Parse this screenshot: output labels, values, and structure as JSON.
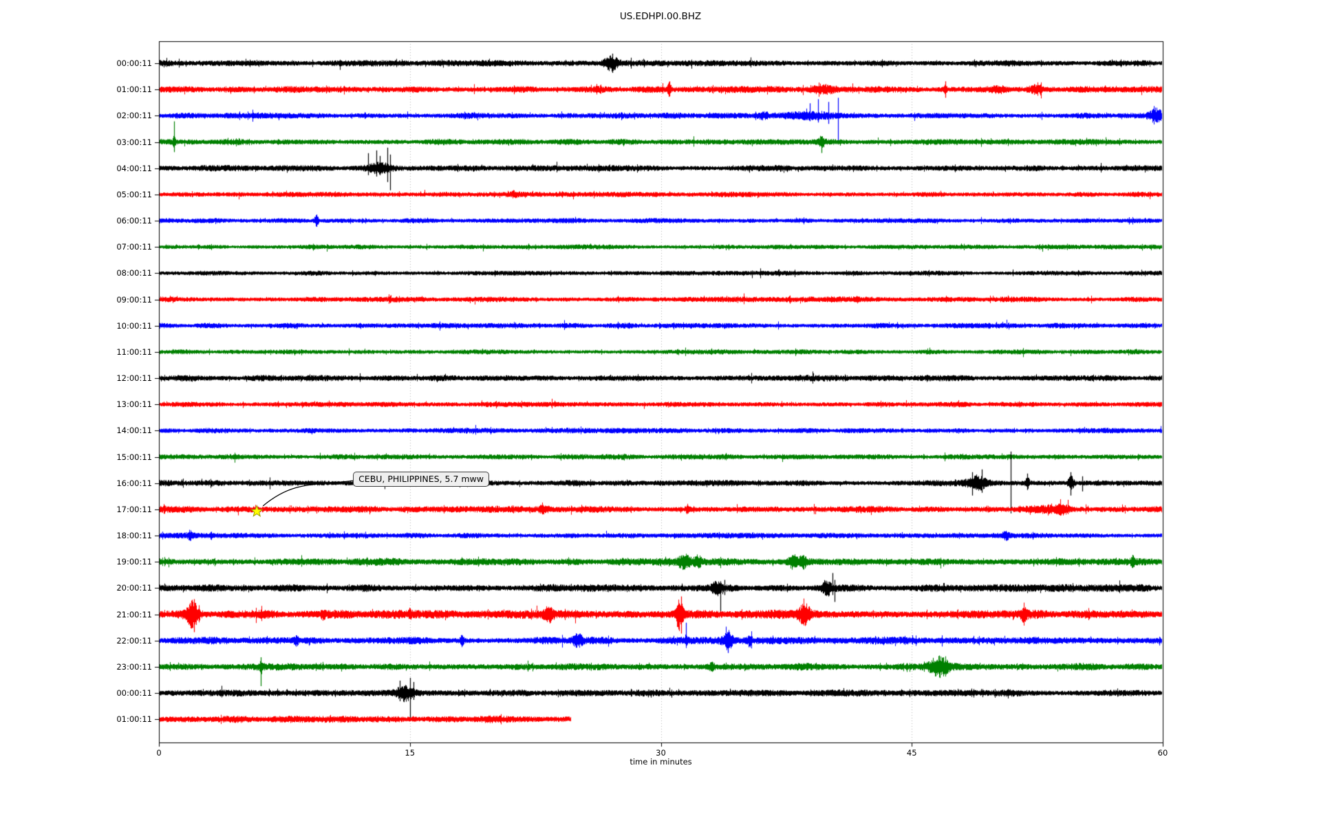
{
  "chart_data": {
    "type": "line",
    "title": "US.EDHPI.00.BHZ",
    "xlabel": "time in minutes",
    "x_range": [
      0,
      60
    ],
    "x_ticks": [
      "0",
      "15",
      "30",
      "45",
      "60"
    ],
    "x_tick_values": [
      0,
      15,
      30,
      45,
      60
    ],
    "grid_x_values": [
      15,
      30,
      45
    ],
    "grid_color": "#b3b3b3",
    "legend": null,
    "trace_palette": {
      "black": "#000000",
      "red": "#ff0000",
      "blue": "#0000ff",
      "green": "#008000"
    },
    "annotation": {
      "text": "CEBU, PHILIPPINES, 5.7 mww",
      "star_row_label": "17:00:11",
      "star_row_index": 17,
      "star_minute": 5.85,
      "star_color": "#ffff00",
      "box_left_minute": 11.6
    },
    "rows": [
      {
        "label": "00:00:11",
        "color": "black",
        "base": 3.8,
        "events": [
          {
            "m": 27.0,
            "s": 0.3,
            "a": 8
          },
          {
            "m": 27.1,
            "up": 14,
            "dn": 14
          }
        ]
      },
      {
        "label": "01:00:11",
        "color": "red",
        "base": 4.2,
        "events": [
          {
            "m": 30.5,
            "s": 0.08,
            "a": 8
          },
          {
            "m": 30.5,
            "up": 12,
            "dn": 10
          },
          {
            "m": 39.6,
            "s": 0.5,
            "a": 4
          },
          {
            "m": 47.0,
            "s": 0.06,
            "a": 6
          },
          {
            "m": 47.0,
            "up": 12,
            "dn": 12
          },
          {
            "m": 50.2,
            "s": 0.35,
            "a": 3.5
          },
          {
            "m": 52.4,
            "s": 0.25,
            "a": 4.5
          }
        ]
      },
      {
        "label": "02:00:11",
        "color": "blue",
        "base": 3.8,
        "events": [
          {
            "m": 36.1,
            "s": 0.2,
            "a": 3
          },
          {
            "m": 38.8,
            "s": 1.2,
            "a": 4
          },
          {
            "m": 38.9,
            "up": 18,
            "dn": 8
          },
          {
            "m": 39.4,
            "up": 24,
            "dn": 10
          },
          {
            "m": 40.0,
            "up": 20,
            "dn": 12
          },
          {
            "m": 40.6,
            "up": 26,
            "dn": 40
          },
          {
            "m": 59.6,
            "s": 0.3,
            "a": 8
          }
        ]
      },
      {
        "label": "03:00:11",
        "color": "green",
        "base": 3.8,
        "events": [
          {
            "m": 0.9,
            "s": 0.05,
            "a": 10
          },
          {
            "m": 0.9,
            "up": 30,
            "dn": 14
          },
          {
            "m": 39.6,
            "s": 0.12,
            "a": 6
          },
          {
            "m": 39.6,
            "up": 8,
            "dn": 16
          }
        ]
      },
      {
        "label": "04:00:11",
        "color": "black",
        "base": 3.8,
        "events": [
          {
            "m": 13.2,
            "s": 0.5,
            "a": 6
          },
          {
            "m": 12.5,
            "up": 22,
            "dn": 10
          },
          {
            "m": 13.0,
            "up": 26,
            "dn": 12
          },
          {
            "m": 13.2,
            "up": 18,
            "dn": 10
          },
          {
            "m": 13.65,
            "up": 30,
            "dn": 20
          },
          {
            "m": 13.8,
            "up": 20,
            "dn": 32
          }
        ]
      },
      {
        "label": "05:00:11",
        "color": "red",
        "base": 3.4,
        "events": [
          {
            "m": 21.2,
            "s": 0.15,
            "a": 2.5
          }
        ]
      },
      {
        "label": "06:00:11",
        "color": "blue",
        "base": 3.2,
        "events": [
          {
            "m": 9.4,
            "s": 0.1,
            "a": 6
          },
          {
            "m": 9.4,
            "up": 9,
            "dn": 9
          }
        ]
      },
      {
        "label": "07:00:11",
        "color": "green",
        "base": 3.0,
        "events": []
      },
      {
        "label": "08:00:11",
        "color": "black",
        "base": 3.0,
        "events": []
      },
      {
        "label": "09:00:11",
        "color": "red",
        "base": 3.4,
        "events": []
      },
      {
        "label": "10:00:11",
        "color": "blue",
        "base": 3.4,
        "events": []
      },
      {
        "label": "11:00:11",
        "color": "green",
        "base": 3.0,
        "events": []
      },
      {
        "label": "12:00:11",
        "color": "black",
        "base": 3.8,
        "events": []
      },
      {
        "label": "13:00:11",
        "color": "red",
        "base": 3.4,
        "events": []
      },
      {
        "label": "14:00:11",
        "color": "blue",
        "base": 3.4,
        "events": []
      },
      {
        "label": "15:00:11",
        "color": "green",
        "base": 3.4,
        "events": []
      },
      {
        "label": "16:00:11",
        "color": "black",
        "base": 3.8,
        "events": [
          {
            "m": 48.9,
            "s": 0.4,
            "a": 9
          },
          {
            "m": 48.6,
            "up": 16,
            "dn": 18
          },
          {
            "m": 49.2,
            "up": 20,
            "dn": 14
          },
          {
            "m": 50.9,
            "up": 46,
            "dn": 44
          },
          {
            "m": 51.9,
            "s": 0.08,
            "a": 8
          },
          {
            "m": 51.9,
            "up": 14,
            "dn": 10
          },
          {
            "m": 54.5,
            "s": 0.12,
            "a": 8
          },
          {
            "m": 54.5,
            "up": 16,
            "dn": 18
          },
          {
            "m": 55.2,
            "up": 10,
            "dn": 12
          }
        ]
      },
      {
        "label": "17:00:11",
        "color": "red",
        "base": 4.2,
        "events": [
          {
            "m": 23.0,
            "s": 0.2,
            "a": 4
          },
          {
            "m": 31.6,
            "s": 0.08,
            "a": 5
          },
          {
            "m": 52.8,
            "s": 0.9,
            "a": 3
          },
          {
            "m": 54.0,
            "s": 0.25,
            "a": 4
          }
        ]
      },
      {
        "label": "18:00:11",
        "color": "blue",
        "base": 3.4,
        "events": [
          {
            "m": 1.85,
            "s": 0.12,
            "a": 4
          },
          {
            "m": 50.6,
            "s": 0.15,
            "a": 4
          }
        ]
      },
      {
        "label": "19:00:11",
        "color": "green",
        "base": 4.6,
        "events": [
          {
            "m": 31.4,
            "s": 0.25,
            "a": 8
          },
          {
            "m": 32.2,
            "s": 0.15,
            "a": 6
          },
          {
            "m": 37.9,
            "s": 0.2,
            "a": 7
          },
          {
            "m": 38.5,
            "s": 0.15,
            "a": 6
          },
          {
            "m": 58.2,
            "s": 0.08,
            "a": 7
          },
          {
            "m": 58.2,
            "up": 10,
            "dn": 6
          }
        ]
      },
      {
        "label": "20:00:11",
        "color": "black",
        "base": 4.6,
        "events": [
          {
            "m": 33.3,
            "s": 0.2,
            "a": 7
          },
          {
            "m": 33.55,
            "up": 10,
            "dn": 34
          },
          {
            "m": 33.8,
            "up": 12,
            "dn": 10
          },
          {
            "m": 39.9,
            "s": 0.2,
            "a": 8
          },
          {
            "m": 40.25,
            "up": 22,
            "dn": 10
          },
          {
            "m": 40.4,
            "up": 12,
            "dn": 20
          }
        ]
      },
      {
        "label": "21:00:11",
        "color": "red",
        "base": 5.5,
        "events": [
          {
            "m": 2.0,
            "s": 0.25,
            "a": 16
          },
          {
            "m": 2.1,
            "up": 22,
            "dn": 26
          },
          {
            "m": 9.8,
            "s": 0.08,
            "a": 5
          },
          {
            "m": 15.0,
            "s": 0.06,
            "a": 5
          },
          {
            "m": 23.3,
            "s": 0.2,
            "a": 8
          },
          {
            "m": 31.1,
            "s": 0.15,
            "a": 20
          },
          {
            "m": 31.2,
            "up": 26,
            "dn": 28
          },
          {
            "m": 38.6,
            "s": 0.25,
            "a": 11
          },
          {
            "m": 51.7,
            "s": 0.12,
            "a": 7
          }
        ]
      },
      {
        "label": "22:00:11",
        "color": "blue",
        "base": 4.6,
        "events": [
          {
            "m": 8.2,
            "s": 0.08,
            "a": 5
          },
          {
            "m": 18.1,
            "s": 0.08,
            "a": 6
          },
          {
            "m": 25.0,
            "s": 0.2,
            "a": 8
          },
          {
            "m": 31.5,
            "s": 0.05,
            "a": 6
          },
          {
            "m": 31.5,
            "up": 26,
            "dn": 8
          },
          {
            "m": 34.0,
            "s": 0.2,
            "a": 10
          },
          {
            "m": 34.0,
            "up": 12,
            "dn": 18
          },
          {
            "m": 35.3,
            "s": 0.08,
            "a": 6
          }
        ]
      },
      {
        "label": "23:00:11",
        "color": "green",
        "base": 4.6,
        "events": [
          {
            "m": 6.1,
            "s": 0.05,
            "a": 8
          },
          {
            "m": 6.1,
            "up": 14,
            "dn": 28
          },
          {
            "m": 33.0,
            "s": 0.12,
            "a": 4
          },
          {
            "m": 46.6,
            "s": 0.4,
            "a": 12
          },
          {
            "m": 46.9,
            "up": 14,
            "dn": 10
          }
        ]
      },
      {
        "label": "00:00:11",
        "color": "black",
        "base": 4.2,
        "events": [
          {
            "m": 14.7,
            "s": 0.35,
            "a": 9
          },
          {
            "m": 14.4,
            "up": 18,
            "dn": 12
          },
          {
            "m": 15.0,
            "up": 22,
            "dn": 40
          },
          {
            "m": 15.2,
            "up": 16,
            "dn": 10
          }
        ]
      },
      {
        "label": "01:00:11",
        "color": "red",
        "base": 4.6,
        "end_minute": 24.6,
        "events": []
      }
    ]
  }
}
